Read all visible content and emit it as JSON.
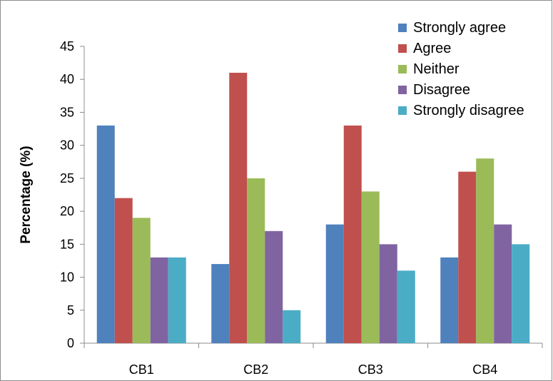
{
  "chart_data": {
    "type": "bar",
    "title": "",
    "xlabel": "",
    "ylabel": "Percentage (%)",
    "ylim": [
      0,
      45
    ],
    "yticks": [
      0,
      5,
      10,
      15,
      20,
      25,
      30,
      35,
      40,
      45
    ],
    "grid": false,
    "legend_position": "top-right",
    "categories": [
      "CB1",
      "CB2",
      "CB3",
      "CB4"
    ],
    "series": [
      {
        "name": "Strongly agree",
        "color": "#4F81BD",
        "values": [
          33,
          12,
          18,
          13
        ]
      },
      {
        "name": "Agree",
        "color": "#C0504D",
        "values": [
          22,
          41,
          33,
          26
        ]
      },
      {
        "name": "Neither",
        "color": "#9BBB59",
        "values": [
          19,
          25,
          23,
          28
        ]
      },
      {
        "name": "Disagree",
        "color": "#8064A2",
        "values": [
          13,
          17,
          15,
          18
        ]
      },
      {
        "name": "Strongly disagree",
        "color": "#4BACC6",
        "values": [
          13,
          5,
          11,
          15
        ]
      }
    ]
  }
}
